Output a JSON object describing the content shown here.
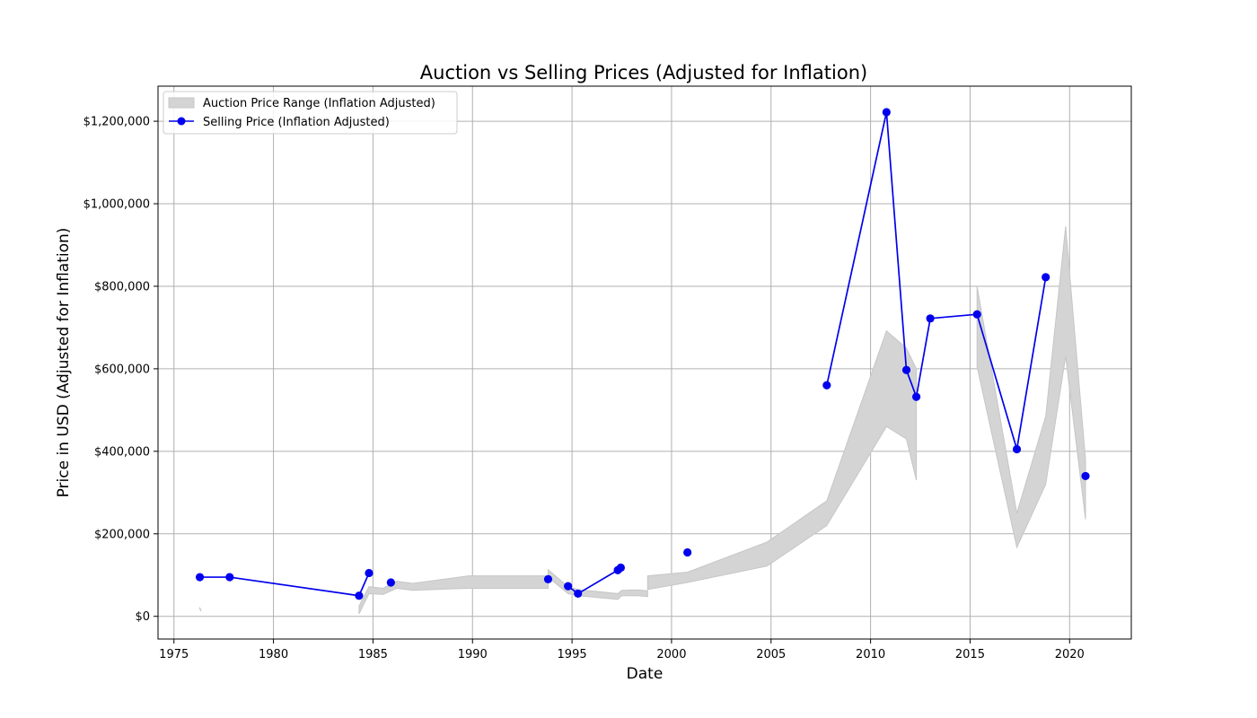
{
  "chart_data": {
    "type": "line",
    "title": "Auction vs Selling Prices (Adjusted for Inflation)",
    "xlabel": "Date",
    "ylabel": "Price in USD (Adjusted for Inflation)",
    "xlim": [
      1974.2,
      2023.1
    ],
    "ylim": [
      -55000,
      1285000
    ],
    "x_ticks": [
      1975,
      1980,
      1985,
      1990,
      1995,
      2000,
      2005,
      2010,
      2015,
      2020
    ],
    "x_tick_labels": [
      "1975",
      "1980",
      "1985",
      "1990",
      "1995",
      "2000",
      "2005",
      "2010",
      "2015",
      "2020"
    ],
    "y_ticks": [
      0,
      200000,
      400000,
      600000,
      800000,
      1000000,
      1200000
    ],
    "y_tick_labels": [
      "$0",
      "$200,000",
      "$400,000",
      "$600,000",
      "$800,000",
      "$1,000,000",
      "$1,200,000"
    ],
    "grid": true,
    "legend_position": "top-left",
    "legend": [
      "Auction Price Range (Inflation Adjusted)",
      "Selling Price (Inflation Adjusted)"
    ],
    "colors": {
      "band": "#d4d4d4",
      "band_edge": "#c6c6c6",
      "line": "#0000ee"
    },
    "auction_range": [
      [
        {
          "x": 1976.3,
          "low": 18000,
          "high": 20000
        },
        {
          "x": 1976.35,
          "low": 14000,
          "high": 16000
        }
      ],
      [
        {
          "x": 1984.3,
          "low": 6000,
          "high": 25000
        },
        {
          "x": 1984.8,
          "low": 55000,
          "high": 72000
        },
        {
          "x": 1985.5,
          "low": 53000,
          "high": 68000
        },
        {
          "x": 1986.2,
          "low": 68000,
          "high": 85000
        },
        {
          "x": 1987.0,
          "low": 63000,
          "high": 80000
        },
        {
          "x": 1989.8,
          "low": 68000,
          "high": 98000
        },
        {
          "x": 1993.8,
          "low": 68000,
          "high": 98000
        }
      ],
      [
        {
          "x": 1993.8,
          "low": 95000,
          "high": 113000
        },
        {
          "x": 1994.8,
          "low": 55000,
          "high": 72000
        },
        {
          "x": 1995.3,
          "low": 50000,
          "high": 65000
        },
        {
          "x": 1997.3,
          "low": 41000,
          "high": 55000
        },
        {
          "x": 1997.5,
          "low": 50000,
          "high": 63000
        },
        {
          "x": 1998.3,
          "low": 50000,
          "high": 64000
        },
        {
          "x": 1998.8,
          "low": 48000,
          "high": 62000
        }
      ],
      [
        {
          "x": 1998.8,
          "low": 65000,
          "high": 98000
        },
        {
          "x": 2000.8,
          "low": 82000,
          "high": 107000
        },
        {
          "x": 2004.8,
          "low": 122000,
          "high": 180000
        },
        {
          "x": 2007.8,
          "low": 220000,
          "high": 280000
        },
        {
          "x": 2010.8,
          "low": 460000,
          "high": 692000
        },
        {
          "x": 2011.8,
          "low": 430000,
          "high": 650000
        },
        {
          "x": 2012.3,
          "low": 330000,
          "high": 600000
        }
      ],
      [
        {
          "x": 2015.35,
          "low": 605000,
          "high": 800000
        },
        {
          "x": 2017.35,
          "low": 167000,
          "high": 250000
        },
        {
          "x": 2018.8,
          "low": 320000,
          "high": 485000
        },
        {
          "x": 2019.8,
          "low": 630000,
          "high": 945000
        },
        {
          "x": 2020.8,
          "low": 235000,
          "high": 380000
        }
      ]
    ],
    "series": [
      {
        "name": "Selling Price (Inflation Adjusted)",
        "segments": [
          [
            {
              "x": 1976.3,
              "y": 95000
            },
            {
              "x": 1977.8,
              "y": 95000
            },
            {
              "x": 1984.3,
              "y": 50000
            },
            {
              "x": 1984.8,
              "y": 105000
            }
          ],
          [
            {
              "x": 1985.9,
              "y": 82000
            }
          ],
          [
            {
              "x": 1993.8,
              "y": 90000
            }
          ],
          [
            {
              "x": 1994.8,
              "y": 73000
            },
            {
              "x": 1995.3,
              "y": 55000
            },
            {
              "x": 1997.3,
              "y": 112000
            },
            {
              "x": 1997.45,
              "y": 118000
            }
          ],
          [
            {
              "x": 2000.8,
              "y": 155000
            }
          ],
          [
            {
              "x": 2007.8,
              "y": 560000
            },
            {
              "x": 2010.8,
              "y": 1222000
            },
            {
              "x": 2011.8,
              "y": 597000
            },
            {
              "x": 2012.3,
              "y": 532000
            },
            {
              "x": 2013.0,
              "y": 722000
            },
            {
              "x": 2015.35,
              "y": 732000
            },
            {
              "x": 2017.35,
              "y": 405000
            },
            {
              "x": 2018.8,
              "y": 822000
            }
          ],
          [
            {
              "x": 2020.8,
              "y": 340000
            }
          ]
        ]
      }
    ]
  }
}
